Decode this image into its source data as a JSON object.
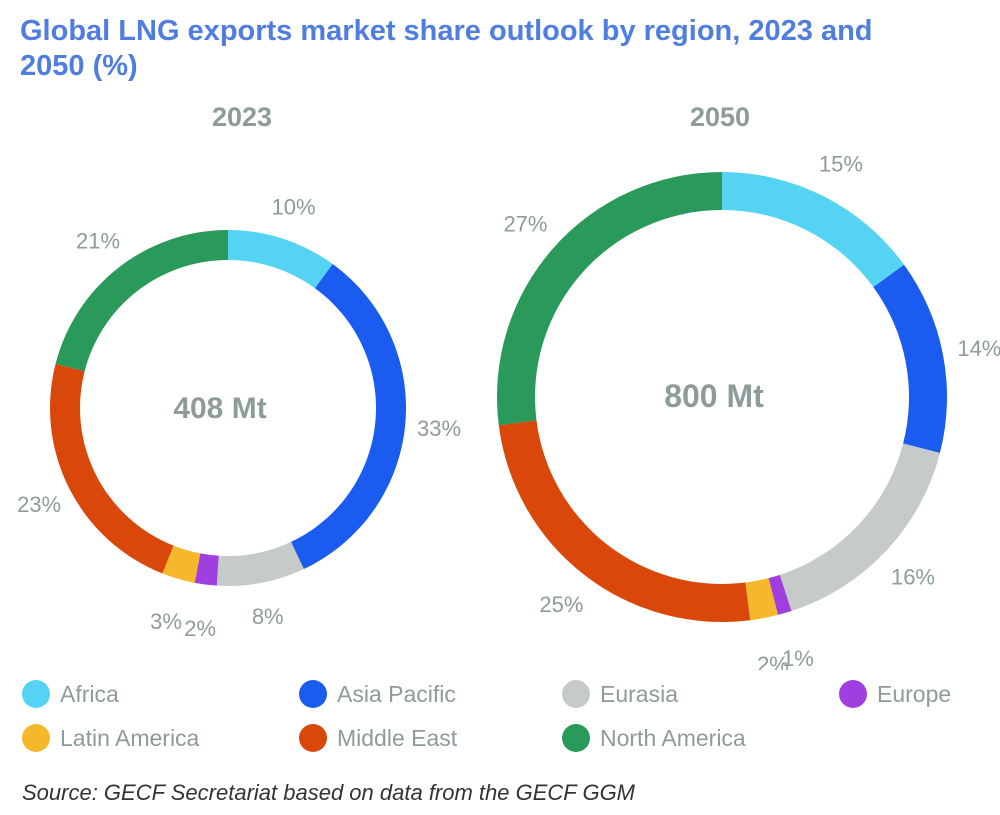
{
  "title": "Global LNG exports market share outlook by region, 2023 and 2050 (%)",
  "source": "Source: GECF Secretariat based on data from the GECF GGM",
  "colors": {
    "Africa": "#55d3f2",
    "Asia Pacific": "#1a5cf0",
    "Eurasia": "#c6cbc9",
    "Europe": "#a03fe0",
    "Latin America": "#f5b82a",
    "Middle East": "#d9480a",
    "North America": "#2a9a5a",
    "title": "#4f7de0",
    "text": "#8e9b9b"
  },
  "legend": [
    "Africa",
    "Asia Pacific",
    "Eurasia",
    "Europe",
    "Latin America",
    "Middle East",
    "North America"
  ],
  "chart_data": [
    {
      "type": "pie",
      "variant": "donut",
      "title": "2023",
      "center_label": "408 Mt",
      "categories": [
        "Africa",
        "Asia Pacific",
        "Eurasia",
        "Europe",
        "Latin America",
        "Middle East",
        "North America"
      ],
      "values": [
        10,
        33,
        8,
        2,
        3,
        23,
        21
      ],
      "labels": [
        "10%",
        "33%",
        "8%",
        "2%",
        "3%",
        "23%",
        "21%"
      ]
    },
    {
      "type": "pie",
      "variant": "donut",
      "title": "2050",
      "center_label": "800 Mt",
      "categories": [
        "Africa",
        "Asia Pacific",
        "Eurasia",
        "Europe",
        "Latin America",
        "Middle East",
        "North America"
      ],
      "values": [
        15,
        14,
        16,
        1,
        2,
        25,
        27
      ],
      "labels": [
        "15%",
        "14%",
        "16%",
        "1%",
        "2%",
        "25%",
        "27%"
      ]
    }
  ]
}
